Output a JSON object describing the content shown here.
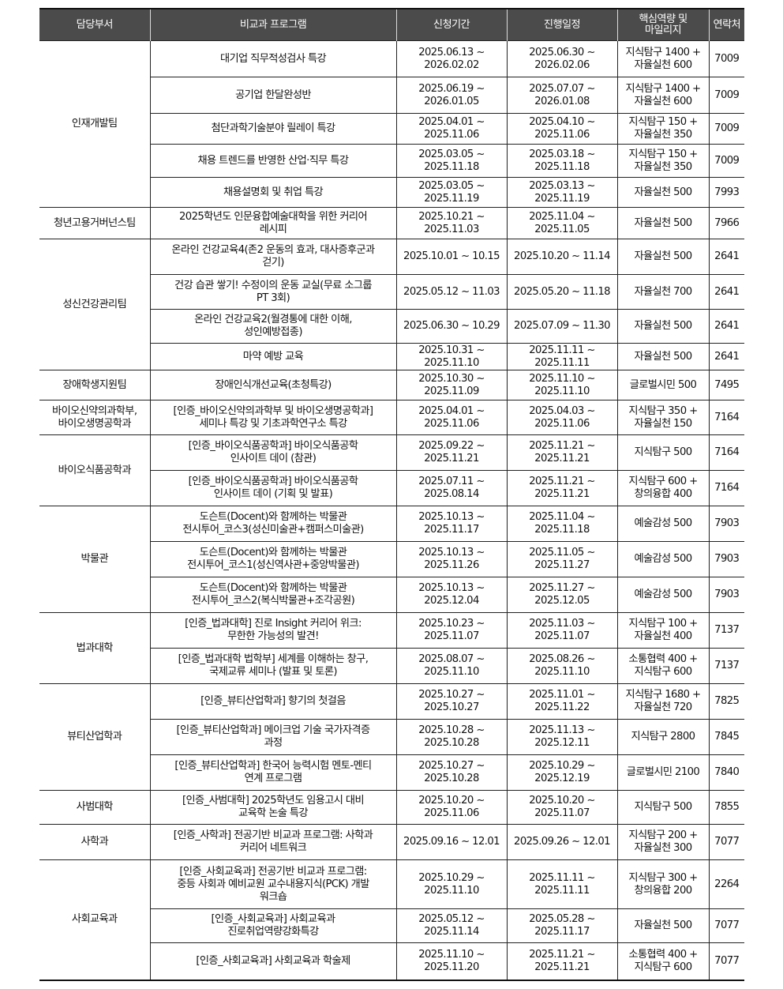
{
  "header": [
    "담당부서",
    "비교과 프로그램",
    "신청기간",
    "진행일정",
    "핵심역량 및\n마일리지",
    "연락처"
  ],
  "colors": {
    "header_bg": "#4b4b4b",
    "header_text": "#ffffff",
    "border": "#222222"
  },
  "groups": [
    {
      "dept": "인재개발팀",
      "rows": [
        {
          "program": "대기업 직무적성검사 특강",
          "apply": "2025.06.13 ~\n2026.02.02",
          "schedule": "2025.06.30 ~\n2026.02.06",
          "mileage": "지식탐구 1400 +\n자율실천 600",
          "contact": "7009"
        },
        {
          "program": "공기업 한달완성반",
          "apply": "2025.06.19 ~\n2026.01.05",
          "schedule": "2025.07.07 ~\n2026.01.08",
          "mileage": "지식탐구 1400 +\n자율실천 600",
          "contact": "7009"
        },
        {
          "program": "첨단과학기술분야 릴레이 특강",
          "apply": "2025.04.01 ~\n2025.11.06",
          "schedule": "2025.04.10 ~\n2025.11.06",
          "mileage": "지식탐구 150 +\n자율실천 350",
          "contact": "7009"
        },
        {
          "program": "채용 트렌드를 반영한 산업·직무 특강",
          "apply": "2025.03.05 ~\n2025.11.18",
          "schedule": "2025.03.18 ~\n2025.11.18",
          "mileage": "지식탐구 150 +\n자율실천 350",
          "contact": "7009"
        },
        {
          "program": "채용설명회 및 취업 특강",
          "apply": "2025.03.05 ~\n2025.11.19",
          "schedule": "2025.03.13 ~\n2025.11.19",
          "mileage": "자율실천 500",
          "contact": "7993"
        }
      ]
    },
    {
      "dept": "청년고용거버넌스팀",
      "rows": [
        {
          "program": "2025학년도 인문융합예술대학을 위한 커리어\n레시피",
          "apply": "2025.10.21 ~\n2025.11.03",
          "schedule": "2025.11.04 ~\n2025.11.05",
          "mileage": "자율실천 500",
          "contact": "7966"
        }
      ]
    },
    {
      "dept": "성신건강관리팀",
      "rows": [
        {
          "program": "온라인 건강교육4(존2 운동의 효과, 대사증후군과\n걷기)",
          "apply": "2025.10.01 ~ 10.15",
          "schedule": "2025.10.20 ~ 11.14",
          "mileage": "자율실천 500",
          "contact": "2641"
        },
        {
          "program": "건강 습관 쌓기! 수정이의 운동 교실(무료 소그룹\nPT 3회)",
          "apply": "2025.05.12 ~ 11.03",
          "schedule": "2025.05.20 ~ 11.18",
          "mileage": "자율실천 700",
          "contact": "2641"
        },
        {
          "program": "온라인 건강교육2(월경통에 대한 이해,\n성인예방접종)",
          "apply": "2025.06.30 ~ 10.29",
          "schedule": "2025.07.09 ~ 11.30",
          "mileage": "자율실천 500",
          "contact": "2641"
        },
        {
          "program": "마약 예방 교육",
          "apply": "2025.10.31 ~\n2025.11.10",
          "schedule": "2025.11.11 ~\n2025.11.11",
          "mileage": "자율실천 500",
          "contact": "2641"
        }
      ]
    },
    {
      "dept": "장애학생지원팀",
      "rows": [
        {
          "program": "장애인식개선교육(초청특강)",
          "apply": "2025.10.30 ~\n2025.11.09",
          "schedule": "2025.11.10 ~\n2025.11.10",
          "mileage": "글로벌시민 500",
          "contact": "7495"
        }
      ]
    },
    {
      "dept": "바이오신약의과학부,\n바이오생명공학과",
      "rows": [
        {
          "program": "[인증_바이오신약의과학부 및 바이오생명공학과]\n세미나 특강 및 기초과학연구소 특강",
          "apply": "2025.04.01 ~\n2025.11.06",
          "schedule": "2025.04.03 ~\n2025.11.06",
          "mileage": "지식탐구 350 +\n자율실천 150",
          "contact": "7164"
        }
      ]
    },
    {
      "dept": "바이오식품공학과",
      "rows": [
        {
          "program": "[인증_바이오식품공학과] 바이오식품공학\n인사이트 데이 (참관)",
          "apply": "2025.09.22 ~\n2025.11.21",
          "schedule": "2025.11.21 ~\n2025.11.21",
          "mileage": "지식탐구 500",
          "contact": "7164"
        },
        {
          "program": "[인증_바이오식품공학과] 바이오식품공학\n인사이트 데이 (기획 및 발표)",
          "apply": "2025.07.11 ~\n2025.08.14",
          "schedule": "2025.11.21 ~\n2025.11.21",
          "mileage": "지식탐구 600 +\n창의융합 400",
          "contact": "7164"
        }
      ]
    },
    {
      "dept": "박물관",
      "rows": [
        {
          "program": "도슨트(Docent)와 함께하는 박물관\n전시투어_코스3(성신미술관+캠퍼스미술관)",
          "apply": "2025.10.13 ~\n2025.11.17",
          "schedule": "2025.11.04 ~\n2025.11.18",
          "mileage": "예술감성 500",
          "contact": "7903"
        },
        {
          "program": "도슨트(Docent)와 함께하는 박물관\n전시투어_코스1(성신역사관+중앙박물관)",
          "apply": "2025.10.13 ~\n2025.11.26",
          "schedule": "2025.11.05 ~\n2025.11.27",
          "mileage": "예술감성 500",
          "contact": "7903"
        },
        {
          "program": "도슨트(Docent)와 함께하는 박물관\n전시투어_코스2(복식박물관+조각공원)",
          "apply": "2025.10.13 ~\n2025.12.04",
          "schedule": "2025.11.27 ~\n2025.12.05",
          "mileage": "예술감성 500",
          "contact": "7903"
        }
      ]
    },
    {
      "dept": "법과대학",
      "rows": [
        {
          "program": "[인증_법과대학] 진로 Insight 커리어 위크:\n무한한 가능성의 발견!",
          "apply": "2025.10.23 ~\n2025.11.07",
          "schedule": "2025.11.03 ~\n2025.11.07",
          "mileage": "지식탐구 100 +\n자율실천 400",
          "contact": "7137"
        },
        {
          "program": "[인증_법과대학 법학부] 세계를 이해하는 창구,\n국제교류 세미나 (발표 및 토론)",
          "apply": "2025.08.07 ~\n2025.11.10",
          "schedule": "2025.08.26 ~\n2025.11.10",
          "mileage": "소통협력 400 +\n지식탐구 600",
          "contact": "7137"
        }
      ]
    },
    {
      "dept": "뷰티산업학과",
      "rows": [
        {
          "program": "[인증_뷰티산업학과] 향기의 첫걸음",
          "apply": "2025.10.27 ~\n2025.10.27",
          "schedule": "2025.11.01 ~\n2025.11.22",
          "mileage": "지식탐구 1680 +\n자율실천 720",
          "contact": "7825"
        },
        {
          "program": "[인증_뷰티산업학과] 메이크업 기술 국가자격증\n과정",
          "apply": "2025.10.28 ~\n2025.10.28",
          "schedule": "2025.11.13 ~\n2025.12.11",
          "mileage": "지식탐구 2800",
          "contact": "7845"
        },
        {
          "program": "[인증_뷰티산업학과] 한국어 능력시험 멘토-멘티\n연계 프로그램",
          "apply": "2025.10.27 ~\n2025.10.28",
          "schedule": "2025.10.29 ~\n2025.12.19",
          "mileage": "글로벌시민 2100",
          "contact": "7840"
        }
      ]
    },
    {
      "dept": "사범대학",
      "rows": [
        {
          "program": "[인증_사범대학] 2025학년도 임용고시 대비\n교육학 논술 특강",
          "apply": "2025.10.20 ~\n2025.11.06",
          "schedule": "2025.10.20 ~\n2025.11.07",
          "mileage": "지식탐구 500",
          "contact": "7855"
        }
      ]
    },
    {
      "dept": "사학과",
      "rows": [
        {
          "program": "[인증_사학과] 전공기반 비교과 프로그램: 사학과\n커리어 네트워크",
          "apply": "2025.09.16 ~ 12.01",
          "schedule": "2025.09.26 ~ 12.01",
          "mileage": "지식탐구 200 +\n자율실천 300",
          "contact": "7077"
        }
      ]
    },
    {
      "dept": "사회교육과",
      "rows": [
        {
          "program": "[인증_사회교육과] 전공기반 비교과 프로그램:\n중등 사회과 예비교원 교수내용지식(PCK) 개발\n워크숍",
          "apply": "2025.10.29 ~\n2025.11.10",
          "schedule": "2025.11.11 ~\n2025.11.11",
          "mileage": "지식탐구 300 +\n창의융합 200",
          "contact": "2264"
        },
        {
          "program": "[인증_사회교육과] 사회교육과\n진로취업역량강화특강",
          "apply": "2025.05.12 ~\n2025.11.14",
          "schedule": "2025.05.28 ~\n2025.11.17",
          "mileage": "자율실천 500",
          "contact": "7077"
        },
        {
          "program": "[인증_사회교육과] 사회교육과 학술제",
          "apply": "2025.11.10 ~\n2025.11.20",
          "schedule": "2025.11.21 ~\n2025.11.21",
          "mileage": "소통협력 400 +\n지식탐구 600",
          "contact": "7077"
        }
      ]
    }
  ]
}
